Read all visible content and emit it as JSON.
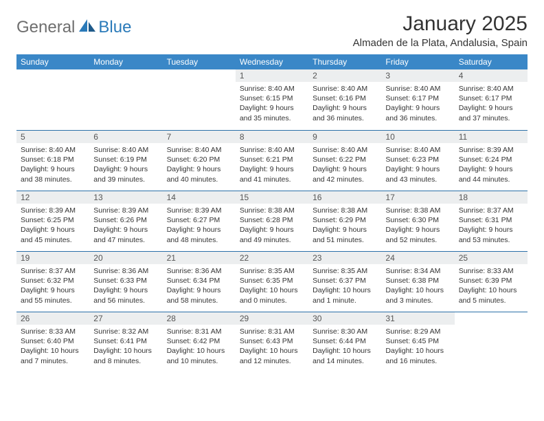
{
  "logo": {
    "text1": "General",
    "text2": "Blue"
  },
  "title": "January 2025",
  "location": "Almaden de la Plata, Andalusia, Spain",
  "colors": {
    "header_bg": "#3a87c7",
    "header_text": "#ffffff",
    "daynum_bg": "#eceeef",
    "row_border": "#2a6fa8",
    "logo_gray": "#6e6e6e",
    "logo_blue": "#2a7ab9"
  },
  "weekdays": [
    "Sunday",
    "Monday",
    "Tuesday",
    "Wednesday",
    "Thursday",
    "Friday",
    "Saturday"
  ],
  "weeks": [
    [
      {
        "blank": true
      },
      {
        "blank": true
      },
      {
        "blank": true
      },
      {
        "day": "1",
        "sunrise": "Sunrise: 8:40 AM",
        "sunset": "Sunset: 6:15 PM",
        "daylight": "Daylight: 9 hours and 35 minutes."
      },
      {
        "day": "2",
        "sunrise": "Sunrise: 8:40 AM",
        "sunset": "Sunset: 6:16 PM",
        "daylight": "Daylight: 9 hours and 36 minutes."
      },
      {
        "day": "3",
        "sunrise": "Sunrise: 8:40 AM",
        "sunset": "Sunset: 6:17 PM",
        "daylight": "Daylight: 9 hours and 36 minutes."
      },
      {
        "day": "4",
        "sunrise": "Sunrise: 8:40 AM",
        "sunset": "Sunset: 6:17 PM",
        "daylight": "Daylight: 9 hours and 37 minutes."
      }
    ],
    [
      {
        "day": "5",
        "sunrise": "Sunrise: 8:40 AM",
        "sunset": "Sunset: 6:18 PM",
        "daylight": "Daylight: 9 hours and 38 minutes."
      },
      {
        "day": "6",
        "sunrise": "Sunrise: 8:40 AM",
        "sunset": "Sunset: 6:19 PM",
        "daylight": "Daylight: 9 hours and 39 minutes."
      },
      {
        "day": "7",
        "sunrise": "Sunrise: 8:40 AM",
        "sunset": "Sunset: 6:20 PM",
        "daylight": "Daylight: 9 hours and 40 minutes."
      },
      {
        "day": "8",
        "sunrise": "Sunrise: 8:40 AM",
        "sunset": "Sunset: 6:21 PM",
        "daylight": "Daylight: 9 hours and 41 minutes."
      },
      {
        "day": "9",
        "sunrise": "Sunrise: 8:40 AM",
        "sunset": "Sunset: 6:22 PM",
        "daylight": "Daylight: 9 hours and 42 minutes."
      },
      {
        "day": "10",
        "sunrise": "Sunrise: 8:40 AM",
        "sunset": "Sunset: 6:23 PM",
        "daylight": "Daylight: 9 hours and 43 minutes."
      },
      {
        "day": "11",
        "sunrise": "Sunrise: 8:39 AM",
        "sunset": "Sunset: 6:24 PM",
        "daylight": "Daylight: 9 hours and 44 minutes."
      }
    ],
    [
      {
        "day": "12",
        "sunrise": "Sunrise: 8:39 AM",
        "sunset": "Sunset: 6:25 PM",
        "daylight": "Daylight: 9 hours and 45 minutes."
      },
      {
        "day": "13",
        "sunrise": "Sunrise: 8:39 AM",
        "sunset": "Sunset: 6:26 PM",
        "daylight": "Daylight: 9 hours and 47 minutes."
      },
      {
        "day": "14",
        "sunrise": "Sunrise: 8:39 AM",
        "sunset": "Sunset: 6:27 PM",
        "daylight": "Daylight: 9 hours and 48 minutes."
      },
      {
        "day": "15",
        "sunrise": "Sunrise: 8:38 AM",
        "sunset": "Sunset: 6:28 PM",
        "daylight": "Daylight: 9 hours and 49 minutes."
      },
      {
        "day": "16",
        "sunrise": "Sunrise: 8:38 AM",
        "sunset": "Sunset: 6:29 PM",
        "daylight": "Daylight: 9 hours and 51 minutes."
      },
      {
        "day": "17",
        "sunrise": "Sunrise: 8:38 AM",
        "sunset": "Sunset: 6:30 PM",
        "daylight": "Daylight: 9 hours and 52 minutes."
      },
      {
        "day": "18",
        "sunrise": "Sunrise: 8:37 AM",
        "sunset": "Sunset: 6:31 PM",
        "daylight": "Daylight: 9 hours and 53 minutes."
      }
    ],
    [
      {
        "day": "19",
        "sunrise": "Sunrise: 8:37 AM",
        "sunset": "Sunset: 6:32 PM",
        "daylight": "Daylight: 9 hours and 55 minutes."
      },
      {
        "day": "20",
        "sunrise": "Sunrise: 8:36 AM",
        "sunset": "Sunset: 6:33 PM",
        "daylight": "Daylight: 9 hours and 56 minutes."
      },
      {
        "day": "21",
        "sunrise": "Sunrise: 8:36 AM",
        "sunset": "Sunset: 6:34 PM",
        "daylight": "Daylight: 9 hours and 58 minutes."
      },
      {
        "day": "22",
        "sunrise": "Sunrise: 8:35 AM",
        "sunset": "Sunset: 6:35 PM",
        "daylight": "Daylight: 10 hours and 0 minutes."
      },
      {
        "day": "23",
        "sunrise": "Sunrise: 8:35 AM",
        "sunset": "Sunset: 6:37 PM",
        "daylight": "Daylight: 10 hours and 1 minute."
      },
      {
        "day": "24",
        "sunrise": "Sunrise: 8:34 AM",
        "sunset": "Sunset: 6:38 PM",
        "daylight": "Daylight: 10 hours and 3 minutes."
      },
      {
        "day": "25",
        "sunrise": "Sunrise: 8:33 AM",
        "sunset": "Sunset: 6:39 PM",
        "daylight": "Daylight: 10 hours and 5 minutes."
      }
    ],
    [
      {
        "day": "26",
        "sunrise": "Sunrise: 8:33 AM",
        "sunset": "Sunset: 6:40 PM",
        "daylight": "Daylight: 10 hours and 7 minutes."
      },
      {
        "day": "27",
        "sunrise": "Sunrise: 8:32 AM",
        "sunset": "Sunset: 6:41 PM",
        "daylight": "Daylight: 10 hours and 8 minutes."
      },
      {
        "day": "28",
        "sunrise": "Sunrise: 8:31 AM",
        "sunset": "Sunset: 6:42 PM",
        "daylight": "Daylight: 10 hours and 10 minutes."
      },
      {
        "day": "29",
        "sunrise": "Sunrise: 8:31 AM",
        "sunset": "Sunset: 6:43 PM",
        "daylight": "Daylight: 10 hours and 12 minutes."
      },
      {
        "day": "30",
        "sunrise": "Sunrise: 8:30 AM",
        "sunset": "Sunset: 6:44 PM",
        "daylight": "Daylight: 10 hours and 14 minutes."
      },
      {
        "day": "31",
        "sunrise": "Sunrise: 8:29 AM",
        "sunset": "Sunset: 6:45 PM",
        "daylight": "Daylight: 10 hours and 16 minutes."
      },
      {
        "blank": true
      }
    ]
  ]
}
